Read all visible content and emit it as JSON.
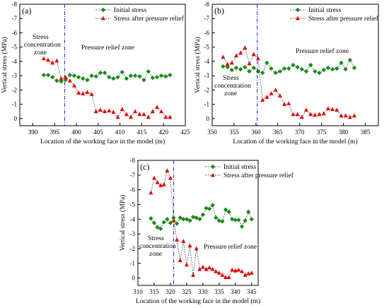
{
  "legend": {
    "initial": "Initial stress",
    "relief": "Stress after pressure relief"
  },
  "colors": {
    "initial": "#1a8a1a",
    "relief": "#e00000",
    "divider": "#1f1fd6",
    "dashed_line": "#333333",
    "frame": "#000000"
  },
  "chart_data": [
    {
      "type": "line",
      "panel": "(a)",
      "xlabel": "Location of the working face in the model (m)",
      "ylabel": "Vertical stress (MPa)",
      "xlim": [
        387,
        425
      ],
      "ylim": [
        0.5,
        -8
      ],
      "xticks": [
        390,
        395,
        400,
        405,
        410,
        415,
        420,
        425
      ],
      "yticks": [
        0,
        -1,
        -2,
        -3,
        -4,
        -5,
        -6,
        -7,
        -8
      ],
      "divider_x": 397.3,
      "annotations": [
        "Stress\nconcentration\nzone",
        "Pressure relief zone"
      ],
      "series": [
        {
          "name": "Initial stress",
          "marker": "diamond",
          "x": [
            392.5,
            393.5,
            394.5,
            395.5,
            396.5,
            397.5,
            398.5,
            399.5,
            400.5,
            401.5,
            402.5,
            403.5,
            404.5,
            405.5,
            406.5,
            407.5,
            408.5,
            409.5,
            410.5,
            411.5,
            412.5,
            413.5,
            414.5,
            415.5,
            416.5,
            417.5,
            418.5,
            419.5,
            420.5,
            421.5
          ],
          "y": [
            -3.05,
            -3.05,
            -2.9,
            -2.65,
            -2.6,
            -2.7,
            -3.05,
            -3.0,
            -2.9,
            -2.8,
            -2.7,
            -3.0,
            -2.95,
            -3.2,
            -3.2,
            -2.9,
            -2.8,
            -2.9,
            -3.25,
            -2.8,
            -3.0,
            -3.0,
            -2.95,
            -2.7,
            -3.3,
            -2.85,
            -2.9,
            -3.0,
            -2.95,
            -3.05
          ]
        },
        {
          "name": "Stress after pressure relief",
          "marker": "triangle",
          "x": [
            392.5,
            393.5,
            394.5,
            395.5,
            396.5,
            397.5,
            398.5,
            399.5,
            400.5,
            401.5,
            402.5,
            403.5,
            404.5,
            405.5,
            406.5,
            407.5,
            408.5,
            409.5,
            410.5,
            411.5,
            412.5,
            413.5,
            414.5,
            415.5,
            416.5,
            417.5,
            418.5,
            419.5,
            420.5,
            421.5
          ],
          "y": [
            -4.2,
            -4.1,
            -3.9,
            -4.05,
            -2.8,
            -2.9,
            -2.65,
            -2.3,
            -1.8,
            -1.75,
            -1.85,
            -1.7,
            -0.5,
            -0.6,
            -0.5,
            -0.55,
            -0.45,
            -0.1,
            -0.65,
            -0.3,
            -0.1,
            -0.5,
            -0.3,
            -0.3,
            -0.1,
            -0.5,
            -0.8,
            -0.5,
            -0.1,
            -0.1
          ]
        }
      ]
    },
    {
      "type": "line",
      "panel": "(b)",
      "xlabel": "Location of the working face in the model (m)",
      "ylabel": "Vertical stress (MPa)",
      "xlim": [
        350,
        388
      ],
      "ylim": [
        0.5,
        -8
      ],
      "xticks": [
        350,
        355,
        360,
        365,
        370,
        375,
        380,
        385
      ],
      "yticks": [
        0,
        -1,
        -2,
        -3,
        -4,
        -5,
        -6,
        -7,
        -8
      ],
      "divider_x": 360.3,
      "annotations": [
        "Stress\nconcentration\nzone",
        "Pressure relief zone"
      ],
      "series": [
        {
          "name": "Initial stress",
          "marker": "diamond",
          "x": [
            352.5,
            353.5,
            354.5,
            355.5,
            356.5,
            357.5,
            358.5,
            359.5,
            360.5,
            361.5,
            362.5,
            363.5,
            364.5,
            365.5,
            366.5,
            367.5,
            368.5,
            369.5,
            370.5,
            371.5,
            372.5,
            373.5,
            374.5,
            375.5,
            376.5,
            377.5,
            378.5,
            379.5,
            380.5,
            381.5,
            382.5
          ],
          "y": [
            -3.65,
            -3.6,
            -3.4,
            -3.55,
            -3.45,
            -3.6,
            -3.3,
            -3.55,
            -3.3,
            -3.2,
            -3.9,
            -3.5,
            -3.2,
            -3.3,
            -3.5,
            -3.5,
            -3.75,
            -3.6,
            -3.45,
            -3.3,
            -3.75,
            -3.3,
            -3.2,
            -3.4,
            -3.55,
            -3.45,
            -3.5,
            -3.9,
            -3.45,
            -4.1,
            -3.55
          ]
        },
        {
          "name": "Stress after pressure relief",
          "marker": "triangle",
          "x": [
            352.5,
            353.5,
            354.5,
            355.5,
            356.5,
            357.5,
            358.5,
            359.5,
            360.5,
            361.5,
            362.5,
            363.5,
            364.5,
            365.5,
            366.5,
            367.5,
            368.5,
            369.5,
            370.5,
            371.5,
            372.5,
            373.5,
            374.5,
            375.5,
            376.5,
            377.5,
            378.5,
            379.5,
            380.5,
            381.5,
            382.5
          ],
          "y": [
            -4.3,
            -3.8,
            -3.9,
            -4.4,
            -4.6,
            -4.95,
            -3.85,
            -4.5,
            -4.2,
            -1.3,
            -1.5,
            -1.75,
            -2.0,
            -1.6,
            -1.0,
            -1.05,
            -0.3,
            -0.3,
            -0.1,
            -0.6,
            -0.3,
            -0.25,
            -0.3,
            -0.35,
            -0.7,
            -0.65,
            -0.6,
            -0.2,
            -0.2,
            -0.1,
            -0.2
          ]
        }
      ]
    },
    {
      "type": "line",
      "panel": "(c)",
      "xlabel": "Location of the working face in the model (m)",
      "ylabel": "Vertical stress (MPa)",
      "xlim": [
        310,
        347
      ],
      "ylim": [
        0.5,
        -8
      ],
      "xticks": [
        310,
        315,
        320,
        325,
        330,
        335,
        340,
        345
      ],
      "yticks": [
        0,
        -1,
        -2,
        -3,
        -4,
        -5,
        -6,
        -7,
        -8
      ],
      "divider_x": 321,
      "annotations": [
        "Stress\nconcentration\nzone",
        "Pressure relief zone"
      ],
      "series": [
        {
          "name": "Initial stress",
          "marker": "diamond",
          "x": [
            314,
            315,
            316,
            317,
            318,
            319,
            320,
            321,
            322,
            323,
            324,
            325,
            326,
            327,
            328,
            329,
            330,
            331,
            332,
            333,
            334,
            335,
            336,
            337,
            338,
            339,
            340,
            341,
            342,
            343,
            344,
            345
          ],
          "y": [
            -4.05,
            -3.75,
            -3.45,
            -3.35,
            -3.8,
            -4.0,
            -3.75,
            -4.1,
            -3.7,
            -4.1,
            -4.0,
            -4.0,
            -3.9,
            -4.15,
            -4.1,
            -4.0,
            -4.3,
            -4.75,
            -4.7,
            -4.95,
            -4.1,
            -3.9,
            -3.85,
            -4.65,
            -4.5,
            -4.0,
            -3.95,
            -3.95,
            -3.5,
            -3.9,
            -4.5,
            -4.0
          ]
        },
        {
          "name": "Stress after pressure relief",
          "marker": "triangle",
          "x": [
            314,
            315,
            316,
            317,
            318,
            319,
            320,
            321,
            322,
            323,
            324,
            325,
            326,
            327,
            328,
            329,
            330,
            331,
            332,
            333,
            334,
            335,
            336,
            337,
            338,
            339,
            340,
            341,
            342,
            343,
            344,
            345
          ],
          "y": [
            -5.8,
            -6.8,
            -6.5,
            -6.3,
            -6.35,
            -7.3,
            -6.8,
            -3.9,
            -2.6,
            -1.2,
            -2.5,
            -0.9,
            -2.2,
            -0.2,
            -2.0,
            -0.6,
            -0.75,
            -0.6,
            -0.7,
            -0.6,
            -0.45,
            -0.35,
            -0.2,
            -0.05,
            -0.05,
            -0.55,
            -0.5,
            -0.55,
            -0.45,
            -0.2,
            -0.3,
            -0.35
          ]
        }
      ]
    }
  ]
}
